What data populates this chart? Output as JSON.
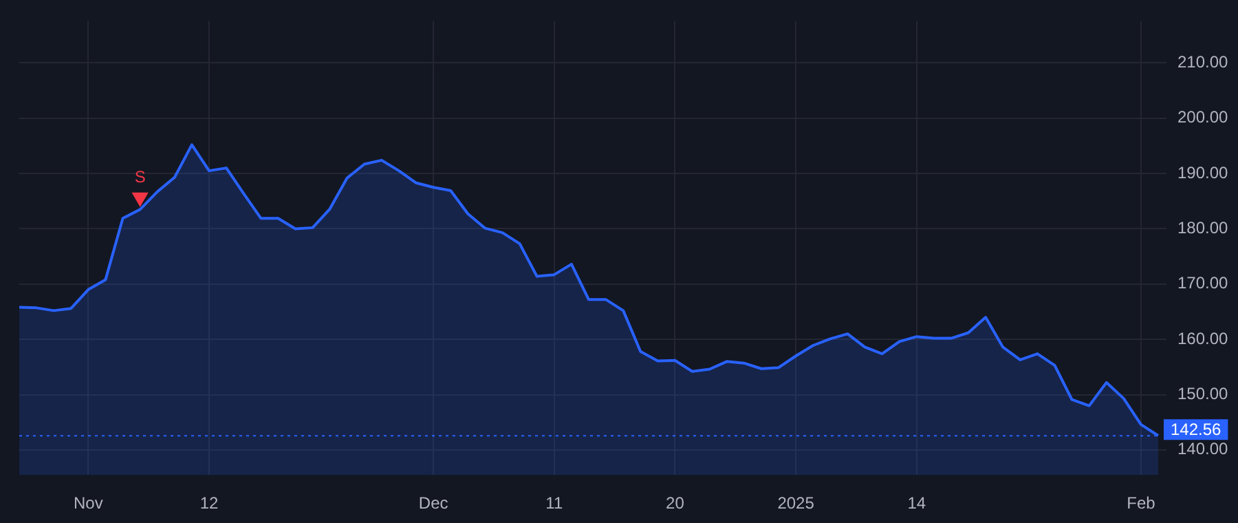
{
  "chart_data": {
    "type": "area",
    "categories": [
      null,
      null,
      null,
      null,
      "Nov",
      null,
      null,
      null,
      null,
      null,
      null,
      "12",
      null,
      null,
      null,
      null,
      null,
      null,
      null,
      null,
      null,
      null,
      null,
      null,
      "Dec",
      null,
      null,
      null,
      null,
      null,
      null,
      "11",
      null,
      null,
      null,
      null,
      null,
      null,
      "20",
      null,
      null,
      null,
      null,
      null,
      null,
      "2025",
      null,
      null,
      null,
      null,
      null,
      null,
      "14",
      null,
      null,
      null,
      null,
      null,
      null,
      null,
      null,
      null,
      null,
      null,
      null,
      "Feb",
      null
    ],
    "series": [
      {
        "color": "#2962ff",
        "values": [
          165.8,
          165.7,
          165.2,
          165.6,
          169.0,
          170.8,
          181.9,
          183.5,
          186.7,
          189.3,
          195.2,
          190.5,
          191.0,
          186.4,
          181.9,
          181.9,
          180.0,
          180.2,
          183.6,
          189.2,
          191.7,
          192.4,
          190.5,
          188.3,
          187.5,
          186.9,
          182.7,
          180.1,
          179.3,
          177.3,
          171.4,
          171.7,
          173.6,
          167.2,
          167.2,
          165.2,
          157.8,
          156.1,
          156.2,
          154.2,
          154.6,
          156.0,
          155.7,
          154.7,
          154.9,
          157.0,
          158.9,
          160.1,
          161.0,
          158.6,
          157.4,
          159.6,
          160.5,
          160.2,
          160.2,
          161.2,
          164.0,
          158.6,
          156.3,
          157.4,
          155.3,
          149.1,
          148.0,
          152.2,
          149.3,
          144.6,
          142.6
        ]
      },
      {
        "type": "scatter",
        "name": "S",
        "color": "#f23645",
        "marker": "triangle",
        "values": [
          null,
          null,
          null,
          null,
          null,
          null,
          null,
          185.7,
          null,
          null,
          null,
          null,
          null,
          null,
          null,
          null,
          null,
          null,
          null,
          null,
          null,
          null,
          null,
          null,
          null,
          null,
          null,
          null,
          null,
          null,
          null,
          null,
          null,
          null,
          null,
          null,
          null,
          null,
          null,
          null,
          null,
          null,
          null,
          null,
          null,
          null,
          null,
          null,
          null,
          null,
          null,
          null,
          null,
          null,
          null,
          null,
          null,
          null,
          null,
          null,
          null,
          null,
          null,
          null,
          null,
          null,
          null
        ]
      }
    ],
    "ylim": [
      135.5,
      217.6
    ],
    "yticks": [
      {
        "value": 140,
        "label": "140.00"
      },
      {
        "value": 150,
        "label": "150.00"
      },
      {
        "value": 160,
        "label": "160.00"
      },
      {
        "value": 170,
        "label": "170.00"
      },
      {
        "value": 180,
        "label": "180.00"
      },
      {
        "value": 190,
        "label": "190.00"
      },
      {
        "value": 200,
        "label": "200.00"
      },
      {
        "value": 210,
        "label": "210.00"
      }
    ],
    "ref_lines": [
      {
        "axis": "y",
        "value": 142.56,
        "label": "142.56",
        "color": "#2962ff",
        "line_style": "dotted"
      }
    ],
    "grid": true,
    "legend": false,
    "line_style": "solid"
  }
}
